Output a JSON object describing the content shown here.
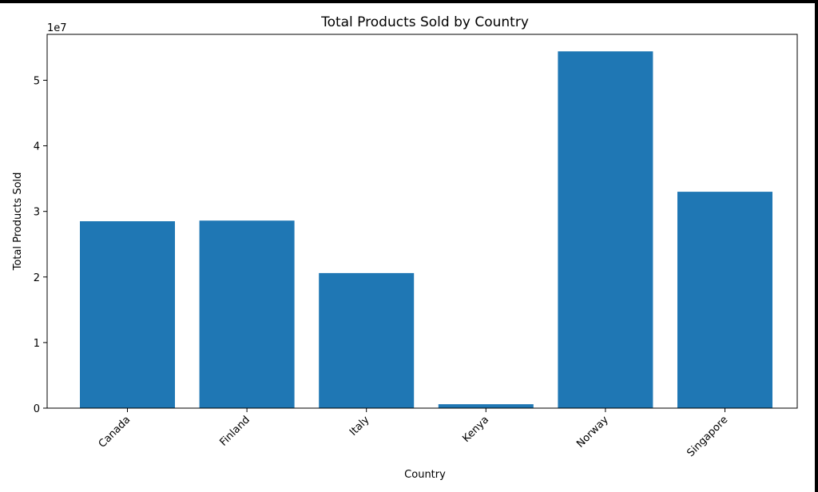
{
  "chart_data": {
    "type": "bar",
    "title": "Total Products Sold by Country",
    "xlabel": "Country",
    "ylabel": "Total Products Sold",
    "offset_text": "1e7",
    "categories": [
      "Canada",
      "Finland",
      "Italy",
      "Kenya",
      "Norway",
      "Singapore"
    ],
    "values": [
      28500000,
      28600000,
      20600000,
      600000,
      54400000,
      33000000
    ],
    "ylim": [
      0,
      57000000
    ],
    "yticks": [
      0,
      10000000,
      20000000,
      30000000,
      40000000,
      50000000
    ],
    "ytick_labels": [
      "0",
      "1",
      "2",
      "3",
      "4",
      "5"
    ],
    "bar_color": "#1f77b4",
    "grid": false,
    "legend": "none"
  }
}
